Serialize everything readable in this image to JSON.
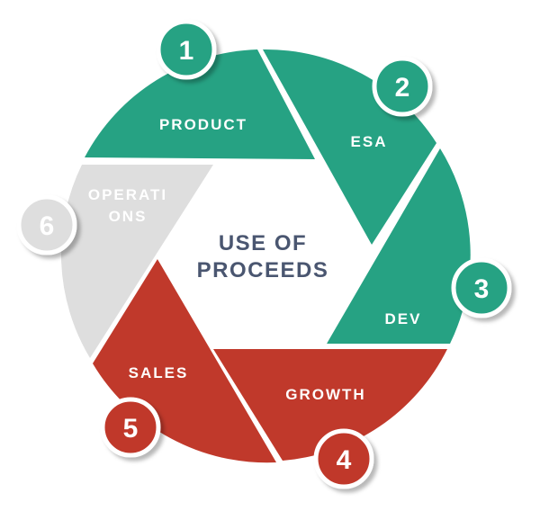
{
  "title_lines": [
    "USE OF",
    "PROCEEDS"
  ],
  "segments": [
    {
      "number": "1",
      "label_lines": [
        "PRODUCT"
      ],
      "color": "#26a283"
    },
    {
      "number": "2",
      "label_lines": [
        "ESA"
      ],
      "color": "#26a283"
    },
    {
      "number": "3",
      "label_lines": [
        "DEV"
      ],
      "color": "#26a283"
    },
    {
      "number": "4",
      "label_lines": [
        "GROWTH"
      ],
      "color": "#c0392b"
    },
    {
      "number": "5",
      "label_lines": [
        "SALES"
      ],
      "color": "#c0392b"
    },
    {
      "number": "6",
      "label_lines": [
        "OPERATI",
        "ONS"
      ],
      "color": "#dedede"
    }
  ]
}
